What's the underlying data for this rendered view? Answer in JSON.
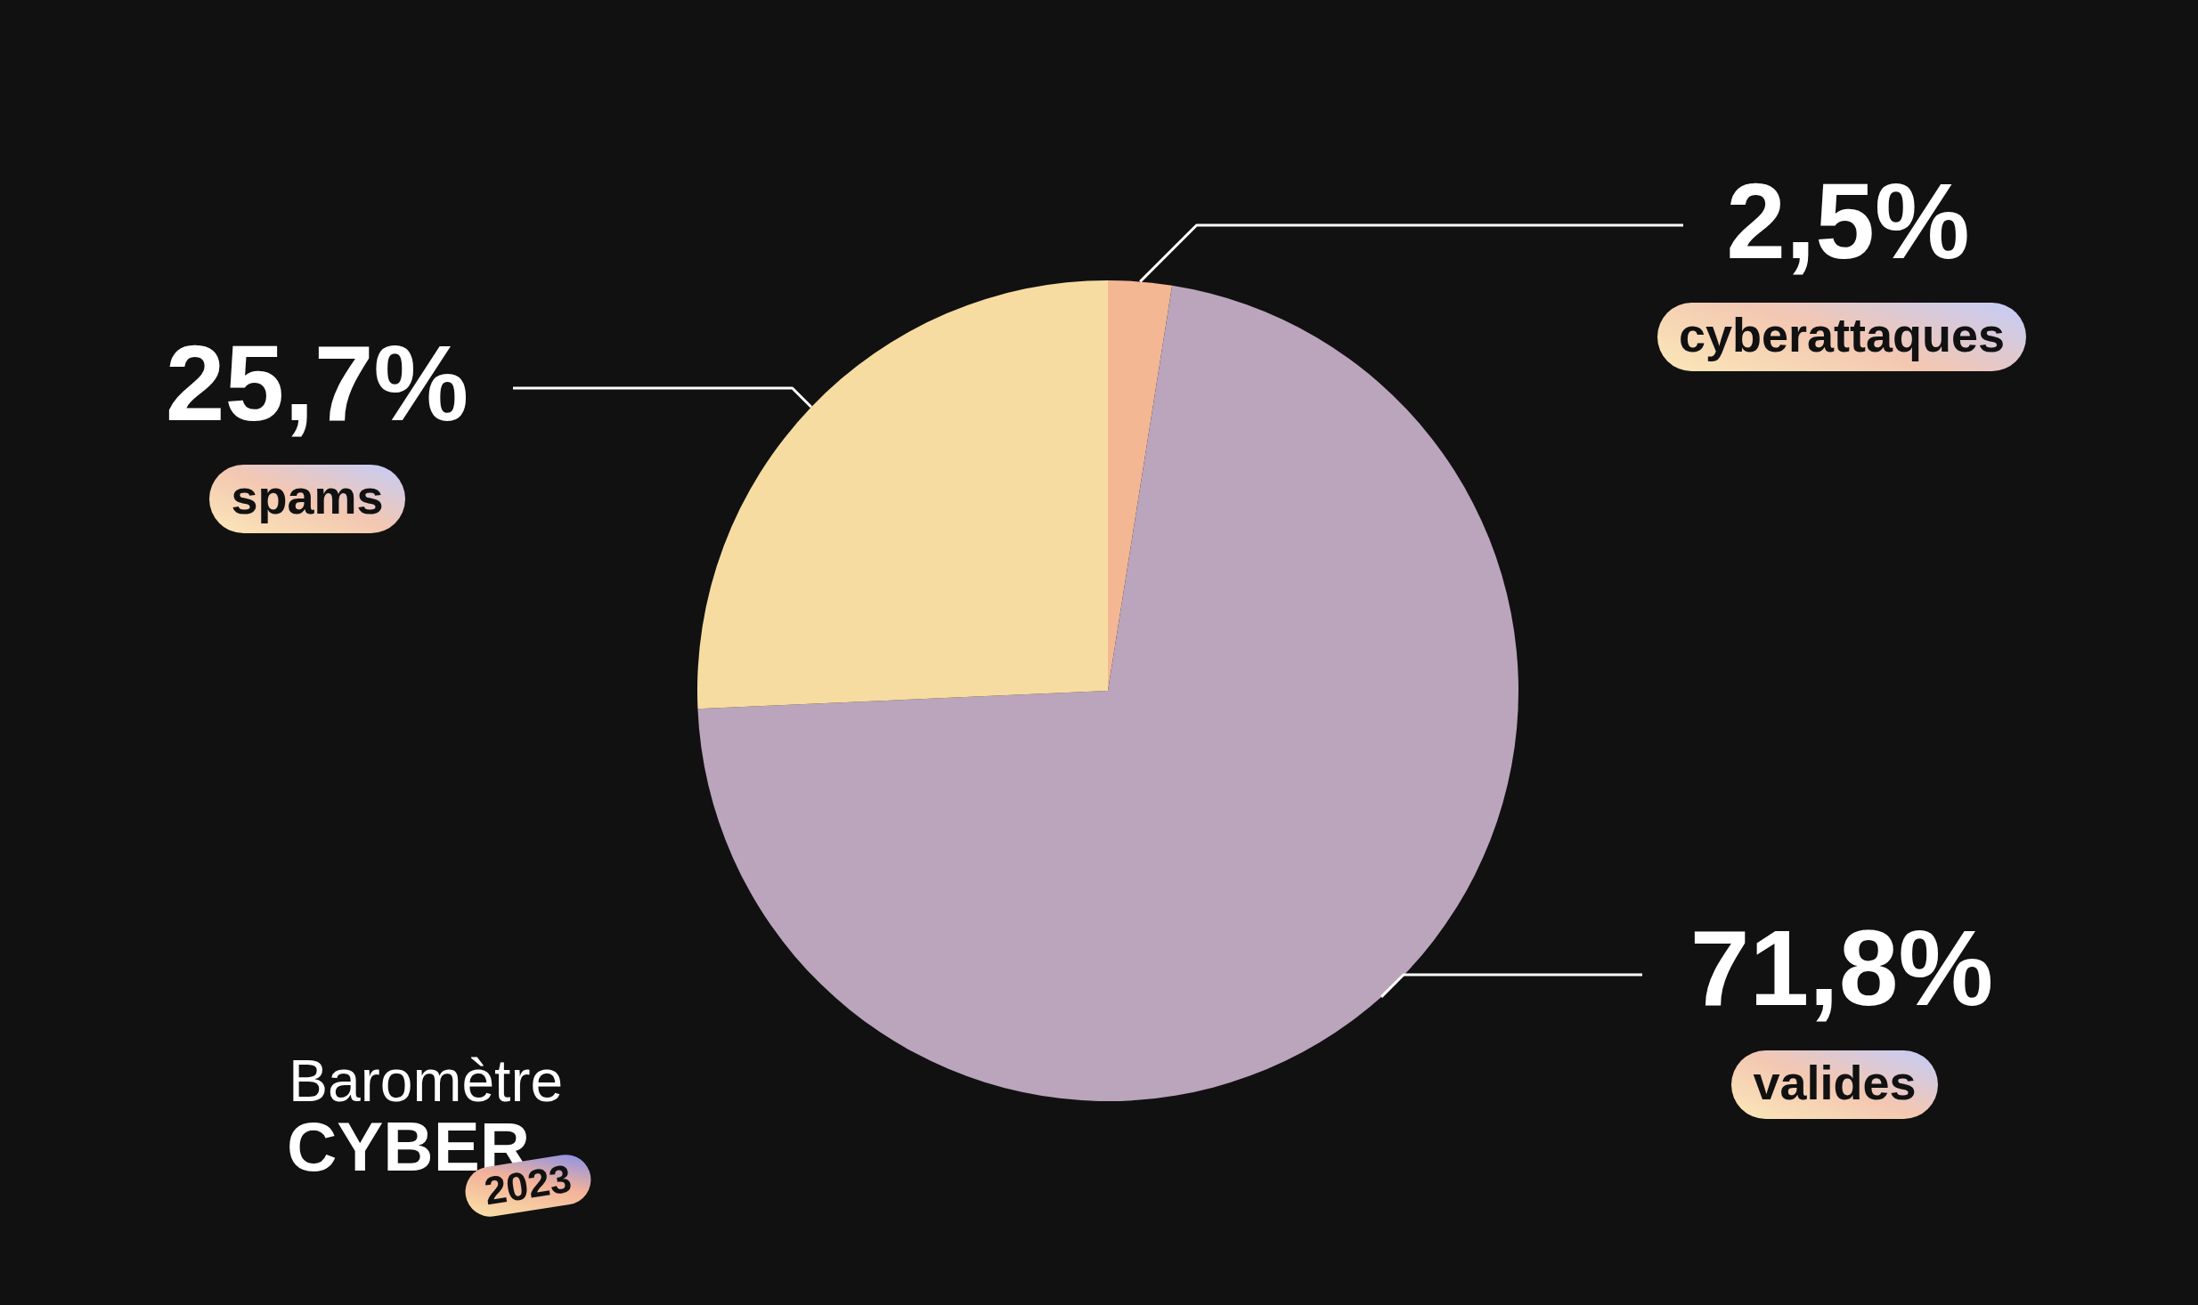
{
  "chart_data": {
    "type": "pie",
    "title": "Baromètre",
    "subtitle": "CYBER",
    "annotations": [
      "2023"
    ],
    "categories": [
      "cyberattaques",
      "valides",
      "spams"
    ],
    "values": [
      2.5,
      71.8,
      25.7
    ],
    "colors": [
      "#f4b794",
      "#baa5bc",
      "#f7dca2"
    ],
    "value_labels": [
      "2,5%",
      "71,8%",
      "25,7%"
    ]
  }
}
